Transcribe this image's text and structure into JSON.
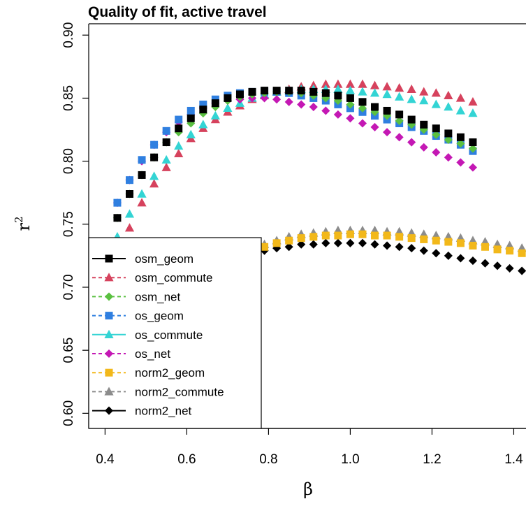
{
  "chart_data": {
    "type": "scatter",
    "title": "Quality of fit, active travel",
    "xlabel": "β",
    "ylabel": "r",
    "ylabel_superscript": "2",
    "xlim": [
      0.36,
      1.43
    ],
    "ylim": [
      0.588,
      0.909
    ],
    "xticks": [
      "0.4",
      "0.6",
      "0.8",
      "1.0",
      "1.2",
      "1.4"
    ],
    "yticks": [
      "0.60",
      "0.65",
      "0.70",
      "0.75",
      "0.80",
      "0.85",
      "0.90"
    ],
    "grid": false,
    "legend_position": "bottom-left",
    "series": [
      {
        "name": "osm_geom",
        "color": "#000000",
        "marker": "square",
        "line": "solid",
        "x": [
          0.43,
          0.46,
          0.49,
          0.52,
          0.55,
          0.58,
          0.61,
          0.64,
          0.67,
          0.7,
          0.73,
          0.76,
          0.79,
          0.82,
          0.85,
          0.88,
          0.91,
          0.94,
          0.97,
          1.0,
          1.03,
          1.06,
          1.09,
          1.12,
          1.15,
          1.18,
          1.21,
          1.24,
          1.27,
          1.3
        ],
        "y": [
          0.755,
          0.774,
          0.789,
          0.803,
          0.815,
          0.826,
          0.834,
          0.841,
          0.846,
          0.85,
          0.853,
          0.855,
          0.856,
          0.856,
          0.856,
          0.856,
          0.855,
          0.854,
          0.852,
          0.85,
          0.847,
          0.843,
          0.84,
          0.837,
          0.833,
          0.829,
          0.826,
          0.822,
          0.819,
          0.815
        ]
      },
      {
        "name": "osm_commute",
        "color": "#d6425d",
        "marker": "triangle",
        "line": "dashed",
        "x": [
          0.43,
          0.46,
          0.49,
          0.52,
          0.55,
          0.58,
          0.61,
          0.64,
          0.67,
          0.7,
          0.73,
          0.76,
          0.79,
          0.82,
          0.85,
          0.88,
          0.91,
          0.94,
          0.97,
          1.0,
          1.03,
          1.06,
          1.09,
          1.12,
          1.15,
          1.18,
          1.21,
          1.24,
          1.27,
          1.3
        ],
        "y": [
          0.731,
          0.747,
          0.767,
          0.782,
          0.795,
          0.806,
          0.818,
          0.826,
          0.833,
          0.839,
          0.844,
          0.849,
          0.852,
          0.855,
          0.857,
          0.859,
          0.86,
          0.861,
          0.861,
          0.861,
          0.861,
          0.86,
          0.859,
          0.858,
          0.857,
          0.855,
          0.854,
          0.852,
          0.85,
          0.847
        ]
      },
      {
        "name": "osm_net",
        "color": "#5ac040",
        "marker": "diamond",
        "line": "dashed",
        "x": [
          0.43,
          0.46,
          0.49,
          0.52,
          0.55,
          0.58,
          0.61,
          0.64,
          0.67,
          0.7,
          0.73,
          0.76,
          0.79,
          0.82,
          0.85,
          0.88,
          0.91,
          0.94,
          0.97,
          1.0,
          1.03,
          1.06,
          1.09,
          1.12,
          1.15,
          1.18,
          1.21,
          1.24,
          1.27,
          1.3
        ],
        "y": [
          0.755,
          0.774,
          0.789,
          0.803,
          0.815,
          0.823,
          0.83,
          0.838,
          0.843,
          0.848,
          0.851,
          0.853,
          0.854,
          0.855,
          0.855,
          0.854,
          0.852,
          0.85,
          0.848,
          0.845,
          0.842,
          0.839,
          0.836,
          0.832,
          0.829,
          0.825,
          0.821,
          0.817,
          0.814,
          0.81
        ]
      },
      {
        "name": "os_geom",
        "color": "#2f7fe0",
        "marker": "square",
        "line": "dashed",
        "x": [
          0.43,
          0.46,
          0.49,
          0.52,
          0.55,
          0.58,
          0.61,
          0.64,
          0.67,
          0.7,
          0.73,
          0.76,
          0.79,
          0.82,
          0.85,
          0.88,
          0.91,
          0.94,
          0.97,
          1.0,
          1.03,
          1.06,
          1.09,
          1.12,
          1.15,
          1.18,
          1.21,
          1.24,
          1.27,
          1.3
        ],
        "y": [
          0.767,
          0.785,
          0.801,
          0.813,
          0.824,
          0.833,
          0.84,
          0.845,
          0.849,
          0.852,
          0.854,
          0.855,
          0.855,
          0.855,
          0.854,
          0.852,
          0.85,
          0.848,
          0.845,
          0.842,
          0.839,
          0.836,
          0.833,
          0.83,
          0.827,
          0.824,
          0.82,
          0.817,
          0.813,
          0.808
        ]
      },
      {
        "name": "os_commute",
        "color": "#33d4d4",
        "marker": "triangle",
        "line": "solid",
        "x": [
          0.43,
          0.46,
          0.49,
          0.52,
          0.55,
          0.58,
          0.61,
          0.64,
          0.67,
          0.7,
          0.73,
          0.76,
          0.79,
          0.82,
          0.85,
          0.88,
          0.91,
          0.94,
          0.97,
          1.0,
          1.03,
          1.06,
          1.09,
          1.12,
          1.15,
          1.18,
          1.21,
          1.24,
          1.27,
          1.3
        ],
        "y": [
          0.74,
          0.758,
          0.774,
          0.788,
          0.801,
          0.812,
          0.821,
          0.829,
          0.836,
          0.842,
          0.846,
          0.85,
          0.853,
          0.855,
          0.856,
          0.857,
          0.857,
          0.857,
          0.857,
          0.856,
          0.855,
          0.854,
          0.853,
          0.851,
          0.849,
          0.848,
          0.845,
          0.843,
          0.84,
          0.838
        ]
      },
      {
        "name": "os_net",
        "color": "#c418b4",
        "marker": "diamond",
        "line": "dashed",
        "x": [
          0.43,
          0.46,
          0.49,
          0.52,
          0.55,
          0.58,
          0.61,
          0.64,
          0.67,
          0.7,
          0.73,
          0.76,
          0.79,
          0.82,
          0.85,
          0.88,
          0.91,
          0.94,
          0.97,
          1.0,
          1.03,
          1.06,
          1.09,
          1.12,
          1.15,
          1.18,
          1.21,
          1.24,
          1.27,
          1.3
        ],
        "y": [
          0.767,
          0.785,
          0.8,
          0.813,
          0.823,
          0.831,
          0.837,
          0.842,
          0.846,
          0.848,
          0.849,
          0.85,
          0.85,
          0.849,
          0.847,
          0.845,
          0.843,
          0.84,
          0.837,
          0.834,
          0.83,
          0.827,
          0.823,
          0.819,
          0.815,
          0.811,
          0.807,
          0.803,
          0.799,
          0.795
        ]
      },
      {
        "name": "norm2_geom",
        "color": "#f2b81a",
        "marker": "square",
        "line": "dashed",
        "x": [
          0.73,
          0.76,
          0.79,
          0.82,
          0.85,
          0.88,
          0.91,
          0.94,
          0.97,
          1.0,
          1.03,
          1.06,
          1.09,
          1.12,
          1.15,
          1.18,
          1.21,
          1.24,
          1.27,
          1.3,
          1.33,
          1.36,
          1.39,
          1.42
        ],
        "y": [
          0.724,
          0.729,
          0.732,
          0.735,
          0.737,
          0.739,
          0.74,
          0.741,
          0.741,
          0.742,
          0.742,
          0.741,
          0.741,
          0.74,
          0.739,
          0.738,
          0.737,
          0.736,
          0.735,
          0.733,
          0.732,
          0.73,
          0.729,
          0.727
        ]
      },
      {
        "name": "norm2_commute",
        "color": "#8c8c8c",
        "marker": "triangle",
        "line": "dashed",
        "x": [
          0.73,
          0.76,
          0.79,
          0.82,
          0.85,
          0.88,
          0.91,
          0.94,
          0.97,
          1.0,
          1.03,
          1.06,
          1.09,
          1.12,
          1.15,
          1.18,
          1.21,
          1.24,
          1.27,
          1.3,
          1.33,
          1.36,
          1.39,
          1.42
        ],
        "y": [
          0.726,
          0.73,
          0.734,
          0.737,
          0.74,
          0.742,
          0.743,
          0.744,
          0.745,
          0.745,
          0.745,
          0.745,
          0.744,
          0.744,
          0.743,
          0.742,
          0.741,
          0.74,
          0.739,
          0.737,
          0.736,
          0.734,
          0.733,
          0.731
        ]
      },
      {
        "name": "norm2_net",
        "color": "#000000",
        "marker": "diamond",
        "line": "solid",
        "x": [
          0.73,
          0.76,
          0.79,
          0.82,
          0.85,
          0.88,
          0.91,
          0.94,
          0.97,
          1.0,
          1.03,
          1.06,
          1.09,
          1.12,
          1.15,
          1.18,
          1.21,
          1.24,
          1.27,
          1.3,
          1.33,
          1.36,
          1.39,
          1.42
        ],
        "y": [
          0.721,
          0.725,
          0.729,
          0.731,
          0.732,
          0.734,
          0.734,
          0.735,
          0.735,
          0.735,
          0.735,
          0.734,
          0.733,
          0.732,
          0.731,
          0.729,
          0.727,
          0.725,
          0.723,
          0.721,
          0.719,
          0.717,
          0.715,
          0.713
        ]
      }
    ]
  }
}
